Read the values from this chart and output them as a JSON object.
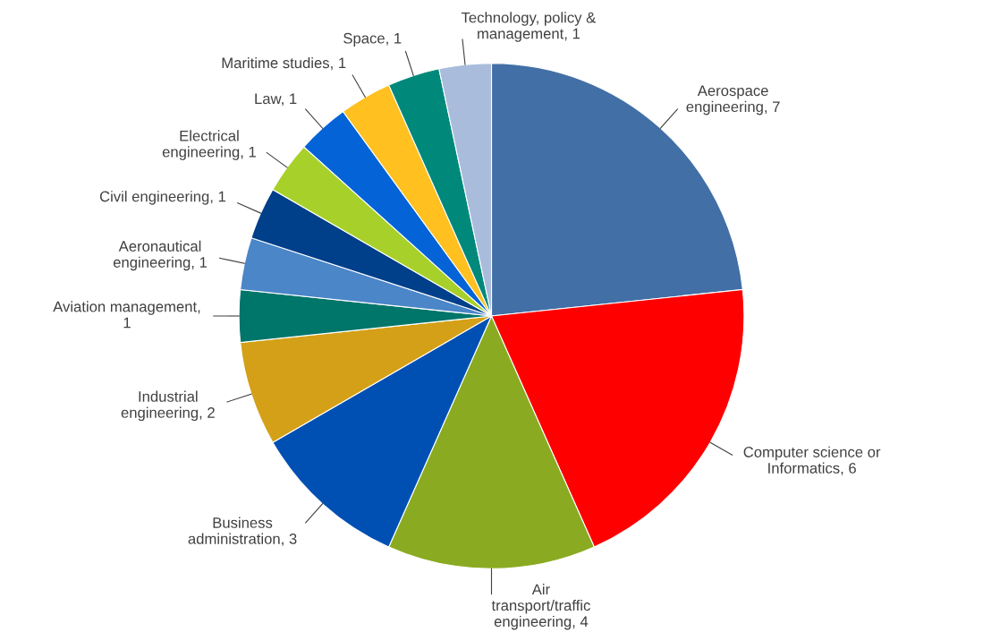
{
  "chart_data": {
    "type": "pie",
    "categories": [
      "Aerospace engineering, 7",
      "Computer science or Informatics, 6",
      "Air transport/traffic engineering, 4",
      "Business administration, 3",
      "Industrial engineering, 2",
      "Aviation management, 1",
      "Aeronautical engineering, 1",
      "Civil engineering, 1",
      "Electrical engineering, 1",
      "Law, 1",
      "Maritime studies, 1",
      "Space, 1",
      "Technology, policy & management, 1"
    ],
    "values": [
      7,
      6,
      4,
      3,
      2,
      1,
      1,
      1,
      1,
      1,
      1,
      1,
      1
    ],
    "colors": [
      "#416fa6",
      "#ff0000",
      "#8aab21",
      "#0050b4",
      "#d4a017",
      "#00756a",
      "#4a86c8",
      "#003f8a",
      "#a8d02a",
      "#0563d8",
      "#ffc020",
      "#00897b",
      "#a9bcdc"
    ]
  }
}
